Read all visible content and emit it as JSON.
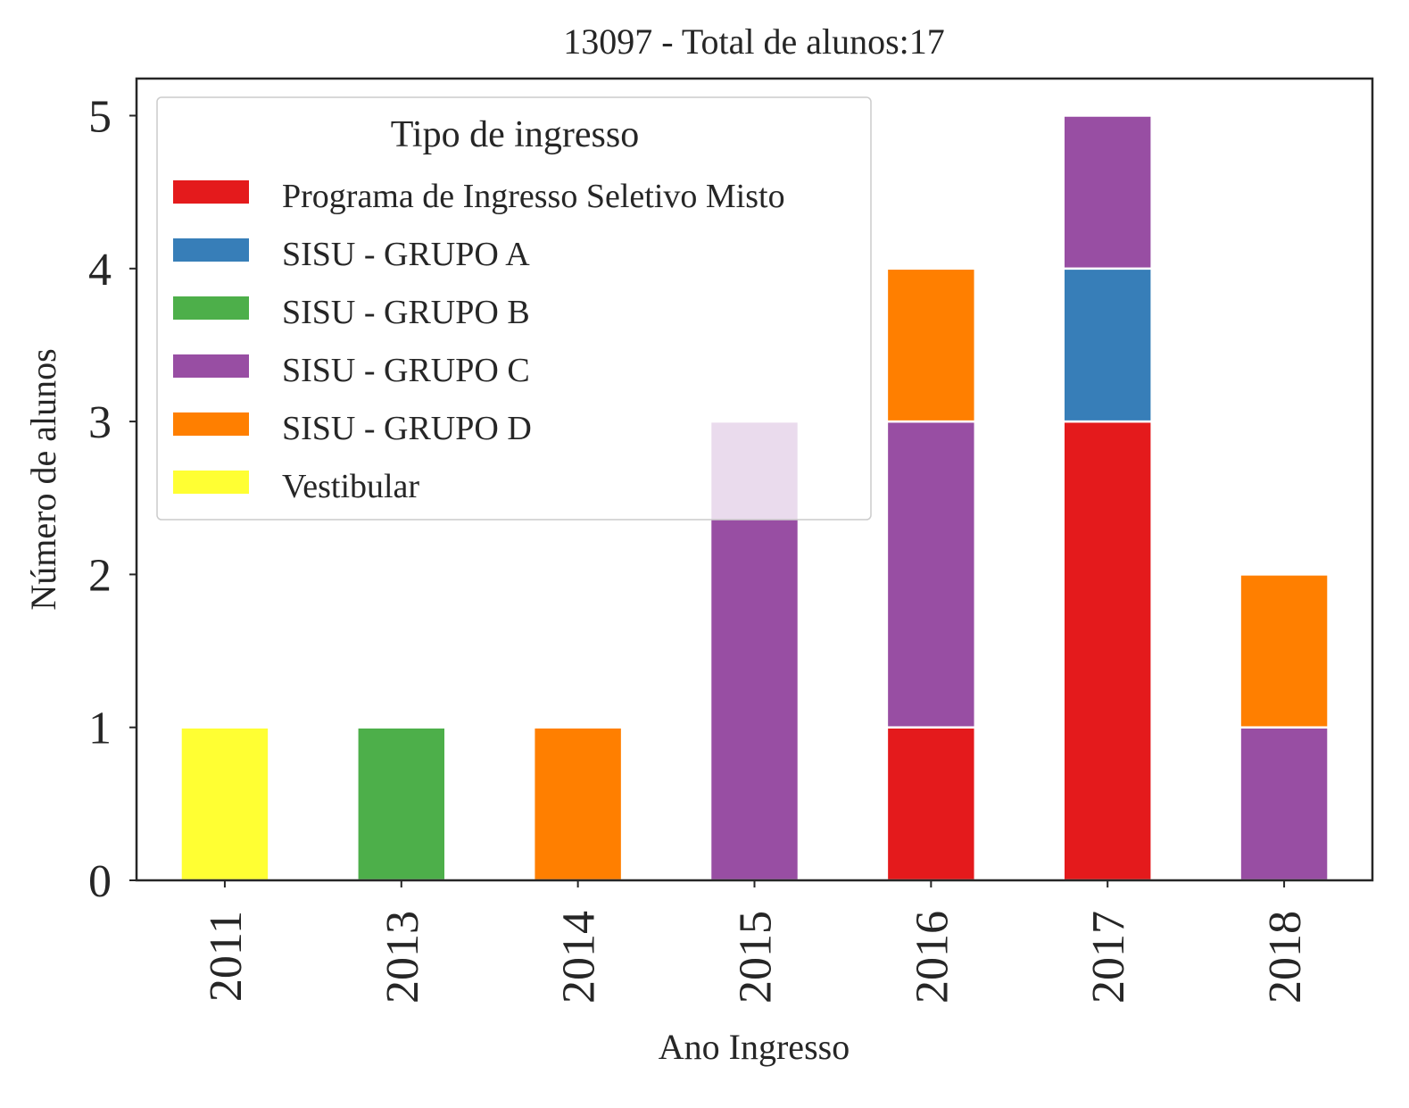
{
  "chart_data": {
    "type": "bar",
    "stacked": true,
    "title": "13097 - Total de alunos:17",
    "xlabel": "Ano Ingresso",
    "ylabel": "Número de alunos",
    "categories": [
      "2011",
      "2013",
      "2014",
      "2015",
      "2016",
      "2017",
      "2018"
    ],
    "ylim": [
      0,
      5.25
    ],
    "yticks": [
      0,
      1,
      2,
      3,
      4,
      5
    ],
    "legend": {
      "title": "Tipo de ingresso",
      "placement": "upper-left"
    },
    "series": [
      {
        "name": "Programa de Ingresso Seletivo Misto",
        "color": "#e41a1c",
        "values": [
          0,
          0,
          0,
          0,
          1,
          3,
          0
        ]
      },
      {
        "name": "SISU - GRUPO A",
        "color": "#377eb8",
        "values": [
          0,
          0,
          0,
          0,
          0,
          1,
          0
        ]
      },
      {
        "name": "SISU - GRUPO B",
        "color": "#4daf4a",
        "values": [
          0,
          1,
          0,
          0,
          0,
          0,
          0
        ]
      },
      {
        "name": "SISU - GRUPO C",
        "color": "#984ea3",
        "values": [
          0,
          0,
          0,
          3,
          2,
          1,
          1
        ]
      },
      {
        "name": "SISU - GRUPO D",
        "color": "#ff7f00",
        "values": [
          0,
          0,
          1,
          0,
          1,
          0,
          1
        ]
      },
      {
        "name": "Vestibular",
        "color": "#ffff33",
        "values": [
          1,
          0,
          0,
          0,
          0,
          0,
          0
        ]
      }
    ]
  }
}
